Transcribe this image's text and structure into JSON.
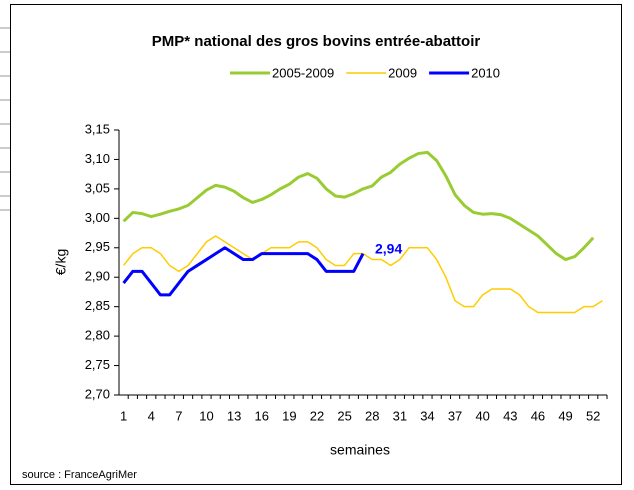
{
  "chart_data": {
    "type": "line",
    "title": "PMP* national des gros bovins entrée-abattoir",
    "x_label": "semaines",
    "y_label": "€/kg",
    "source": "source : FranceAgriMer",
    "x": [
      1,
      2,
      3,
      4,
      5,
      6,
      7,
      8,
      9,
      10,
      11,
      12,
      13,
      14,
      15,
      16,
      17,
      18,
      19,
      20,
      21,
      22,
      23,
      24,
      25,
      26,
      27,
      28,
      29,
      30,
      31,
      32,
      33,
      34,
      35,
      36,
      37,
      38,
      39,
      40,
      41,
      42,
      43,
      44,
      45,
      46,
      47,
      48,
      49,
      50,
      51,
      52,
      53
    ],
    "xlim": [
      0.5,
      53.5
    ],
    "xticks": [
      1,
      4,
      7,
      10,
      13,
      16,
      19,
      22,
      25,
      28,
      31,
      34,
      37,
      40,
      43,
      46,
      49,
      52
    ],
    "ylim": [
      2.7,
      3.15
    ],
    "yticks": [
      {
        "value": 2.7,
        "label": "2,70"
      },
      {
        "value": 2.75,
        "label": "2,75"
      },
      {
        "value": 2.8,
        "label": "2,80"
      },
      {
        "value": 2.85,
        "label": "2,85"
      },
      {
        "value": 2.9,
        "label": "2,90"
      },
      {
        "value": 2.95,
        "label": "2,95"
      },
      {
        "value": 3.0,
        "label": "3,00"
      },
      {
        "value": 3.05,
        "label": "3,05"
      },
      {
        "value": 3.1,
        "label": "3,10"
      },
      {
        "value": 3.15,
        "label": "3,15"
      }
    ],
    "legend": "top",
    "series": [
      {
        "name": "2005-2009",
        "color": "#99cc33",
        "width": 3,
        "values": [
          2.995,
          3.01,
          3.008,
          3.003,
          3.007,
          3.012,
          3.016,
          3.022,
          3.035,
          3.048,
          3.056,
          3.053,
          3.046,
          3.035,
          3.027,
          3.032,
          3.04,
          3.05,
          3.058,
          3.07,
          3.076,
          3.068,
          3.05,
          3.038,
          3.036,
          3.042,
          3.05,
          3.055,
          3.07,
          3.078,
          3.092,
          3.102,
          3.11,
          3.112,
          3.098,
          3.072,
          3.04,
          3.022,
          3.01,
          3.007,
          3.008,
          3.006,
          3.0,
          2.99,
          2.98,
          2.97,
          2.955,
          2.94,
          2.93,
          2.935,
          2.95,
          2.967,
          null
        ]
      },
      {
        "name": "2009",
        "color": "#ffcc00",
        "width": 1.5,
        "values": [
          2.92,
          2.94,
          2.95,
          2.95,
          2.94,
          2.92,
          2.91,
          2.92,
          2.94,
          2.96,
          2.97,
          2.96,
          2.95,
          2.94,
          2.93,
          2.94,
          2.95,
          2.95,
          2.95,
          2.96,
          2.96,
          2.95,
          2.93,
          2.92,
          2.92,
          2.94,
          2.94,
          2.93,
          2.93,
          2.92,
          2.93,
          2.95,
          2.95,
          2.95,
          2.93,
          2.9,
          2.86,
          2.85,
          2.85,
          2.87,
          2.88,
          2.88,
          2.88,
          2.87,
          2.85,
          2.84,
          2.84,
          2.84,
          2.84,
          2.84,
          2.85,
          2.85,
          2.86
        ]
      },
      {
        "name": "2010",
        "color": "#0000ff",
        "width": 3,
        "values": [
          2.89,
          2.91,
          2.91,
          2.89,
          2.87,
          2.87,
          2.89,
          2.91,
          2.92,
          2.93,
          2.94,
          2.95,
          2.94,
          2.93,
          2.93,
          2.94,
          2.94,
          2.94,
          2.94,
          2.94,
          2.94,
          2.93,
          2.91,
          2.91,
          2.91,
          2.91,
          2.94,
          null,
          null,
          null,
          null,
          null,
          null,
          null,
          null,
          null,
          null,
          null,
          null,
          null,
          null,
          null,
          null,
          null,
          null,
          null,
          null,
          null,
          null,
          null,
          null,
          null,
          null
        ],
        "value_labels": [
          null,
          null,
          null,
          null,
          null,
          null,
          null,
          null,
          null,
          null,
          null,
          null,
          null,
          null,
          null,
          null,
          null,
          null,
          null,
          null,
          null,
          null,
          null,
          null,
          null,
          null,
          "2,94",
          null,
          null,
          null,
          null,
          null,
          null,
          null,
          null,
          null,
          null,
          null,
          null,
          null,
          null,
          null,
          null,
          null,
          null,
          null,
          null,
          null,
          null,
          null,
          null,
          null,
          null
        ]
      }
    ]
  }
}
